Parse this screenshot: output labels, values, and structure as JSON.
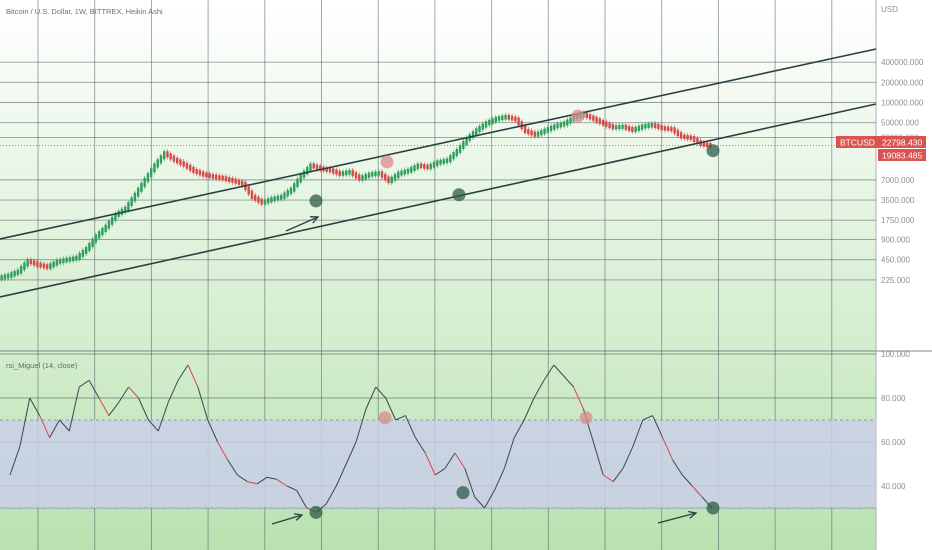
{
  "header": {
    "title": "Bitcoin / U.S. Dollar, 1W, BITTREX, Heikin Ashi",
    "currency": "USD"
  },
  "price_badge": {
    "symbol": "BTCUSD",
    "price": "22798.430",
    "secondary": "19083.485",
    "color": "#d9534f"
  },
  "rsi_panel": {
    "title": "rsi_Miguel (14, close)"
  },
  "colors": {
    "background_top": "#ffffff",
    "background_bottom": "#b9e2b0",
    "up_candle": "#2e9e5c",
    "down_candle": "#d64a4a",
    "channel_line": "#27423f",
    "rsi_band": "#c9cfe8",
    "marker_green": "#2f5b4a",
    "marker_red": "#d98b8b"
  },
  "chart_data": [
    {
      "type": "line",
      "title": "Bitcoin / U.S. Dollar, 1W, BITTREX, Heikin Ashi",
      "scale": "log",
      "yunit": "USD",
      "y_ticks": [
        "400000.000",
        "200000.000",
        "100000.000",
        "50000.000",
        "30000.000",
        "7000.000",
        "3500.000",
        "1750.000",
        "900.000",
        "450.000",
        "225.000"
      ],
      "y_ticks_legible": [
        "400000.000",
        "200000.000",
        "100000.000",
        "50000.000",
        "7000.000"
      ],
      "series": [
        {
          "name": "BTCUSD",
          "values": [
            240,
            260,
            300,
            430,
            380,
            350,
            420,
            450,
            480,
            650,
            1000,
            1400,
            2100,
            2600,
            4200,
            7000,
            11500,
            17500,
            14000,
            11800,
            9500,
            8400,
            7800,
            7400,
            6800,
            6100,
            3900,
            3200,
            3600,
            3900,
            5000,
            8000,
            11500,
            10300,
            9700,
            8600,
            9200,
            7300,
            8400,
            8800,
            6700,
            8700,
            9600,
            11500,
            10800,
            12700,
            13700,
            18900,
            28500,
            38500,
            49000,
            57000,
            61000,
            56000,
            37500,
            33000,
            38000,
            44000,
            48500,
            60000,
            66000,
            57000,
            48500,
            42500,
            43500,
            38800,
            43800,
            46300,
            41400,
            39800,
            31000,
            29500,
            24000,
            22798
          ]
        }
      ],
      "markers": [
        {
          "label": "low",
          "color": "green",
          "value": 3400
        },
        {
          "label": "high",
          "color": "red",
          "value": 13000
        },
        {
          "label": "low",
          "color": "green",
          "value": 4200
        },
        {
          "label": "high",
          "color": "red",
          "value": 63000
        },
        {
          "label": "low",
          "color": "green",
          "value": 19083
        }
      ],
      "channel_lines": 2,
      "grid": true,
      "last_price": 22798.43
    },
    {
      "type": "line",
      "title": "rsi_Miguel (14, close)",
      "y_ticks": [
        "100.000",
        "80.000",
        "60.000",
        "40.000"
      ],
      "ylim": [
        20,
        100
      ],
      "overbought": 70,
      "oversold": 30,
      "series": [
        {
          "name": "rsi_Miguel (14, close)",
          "values": [
            45,
            58,
            80,
            72,
            62,
            70,
            65,
            85,
            88,
            80,
            72,
            78,
            85,
            80,
            70,
            65,
            78,
            88,
            95,
            85,
            70,
            60,
            52,
            45,
            42,
            41,
            44,
            43,
            40,
            38,
            30,
            28,
            32,
            40,
            50,
            60,
            75,
            85,
            80,
            70,
            72,
            62,
            55,
            45,
            48,
            55,
            48,
            35,
            30,
            38,
            48,
            62,
            70,
            80,
            88,
            95,
            90,
            85,
            75,
            60,
            45,
            42,
            48,
            58,
            70,
            72,
            62,
            52,
            45,
            40,
            35,
            30
          ]
        }
      ],
      "markers": [
        {
          "label": "low",
          "color": "green",
          "value": 28
        },
        {
          "label": "high",
          "color": "red",
          "value": 71
        },
        {
          "label": "low",
          "color": "green",
          "value": 37
        },
        {
          "label": "high",
          "color": "red",
          "value": 71
        },
        {
          "label": "low",
          "color": "green",
          "value": 30
        }
      ],
      "grid": true
    }
  ]
}
